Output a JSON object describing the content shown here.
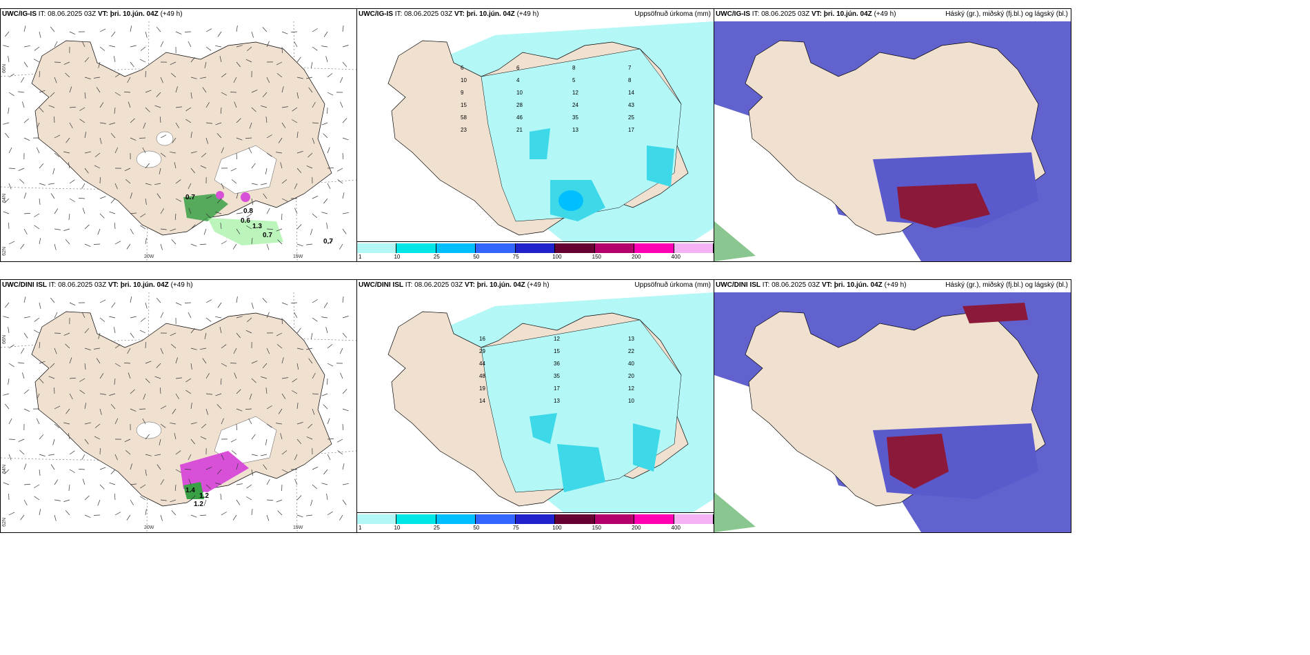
{
  "rows": [
    {
      "panels": [
        {
          "model": "UWC/IG-IS",
          "it_label": "IT:",
          "it": "08.06.2025 03Z",
          "vt_label": "VT:",
          "vt": "þri. 10.jún. 04Z",
          "lead": "(+49 h)",
          "right_title": ""
        },
        {
          "model": "UWC/IG-IS",
          "it_label": "IT:",
          "it": "08.06.2025 03Z",
          "vt_label": "VT:",
          "vt": "þri. 10.jún. 04Z",
          "lead": "(+49 h)",
          "right_title": "Uppsöfnuð úrkoma (mm)"
        },
        {
          "model": "UWC/IG-IS",
          "it_label": "IT:",
          "it": "08.06.2025 03Z",
          "vt_label": "VT:",
          "vt": "þri. 10.jún. 04Z",
          "lead": "(+49 h)",
          "right_title": "Háský (gr.), miðský (fj.bl.) og lágský (bl.)"
        }
      ]
    },
    {
      "panels": [
        {
          "model": "UWC/DINI ISL",
          "it_label": "IT:",
          "it": "08.06.2025 03Z",
          "vt_label": "VT:",
          "vt": "þri. 10.jún. 04Z",
          "lead": "(+49 h)",
          "right_title": ""
        },
        {
          "model": "UWC/DINI ISL",
          "it_label": "IT:",
          "it": "08.06.2025 03Z",
          "vt_label": "VT:",
          "vt": "þri. 10.jún. 04Z",
          "lead": "(+49 h)",
          "right_title": "Uppsöfnuð úrkoma (mm)"
        },
        {
          "model": "UWC/DINI ISL",
          "it_label": "IT:",
          "it": "08.06.2025 03Z",
          "vt_label": "VT:",
          "vt": "þri. 10.jún. 04Z",
          "lead": "(+49 h)",
          "right_title": "Háský (gr.), miðský (fj.bl.) og lágský (bl.)"
        }
      ]
    }
  ],
  "axis_labels": {
    "lat_66": "66N",
    "lat_64": "64N",
    "lat_62": "62N",
    "lon_20": "20W",
    "lon_15": "15W"
  },
  "colorbar": {
    "ticks": [
      "1",
      "10",
      "25",
      "50",
      "75",
      "100",
      "150",
      "200",
      "400"
    ],
    "colors": [
      "#b3f7f7",
      "#00e6e6",
      "#00bfff",
      "#3366ff",
      "#2222cc",
      "#660033",
      "#b3006b",
      "#ff00b3",
      "#f5b3f5"
    ]
  },
  "colors": {
    "land": "#f0e0d0",
    "precip_light": "#b3f7f7",
    "precip_mid": "#3dd9e8",
    "cloud_high": "#5a5acc",
    "cloud_low": "#8b1a3a",
    "green": "#3aa046",
    "magenta": "#d84fd8"
  },
  "top_wind_values": [
    "0.7",
    "0.8",
    "0.6",
    "1.3",
    "0.7",
    "0.7"
  ],
  "bottom_wind_values": [
    "1.4",
    "1.2",
    "1.2"
  ],
  "top_precip_values": [
    "6",
    "6",
    "8",
    "7",
    "10",
    "4",
    "5",
    "8",
    "9",
    "10",
    "12",
    "14",
    "15",
    "28",
    "24",
    "43",
    "58",
    "46",
    "35",
    "25",
    "23",
    "21",
    "13",
    "17"
  ],
  "bottom_precip_values": [
    "16",
    "12",
    "13",
    "29",
    "15",
    "22",
    "44",
    "36",
    "40",
    "48",
    "35",
    "20",
    "19",
    "17",
    "12",
    "14",
    "13",
    "10"
  ]
}
